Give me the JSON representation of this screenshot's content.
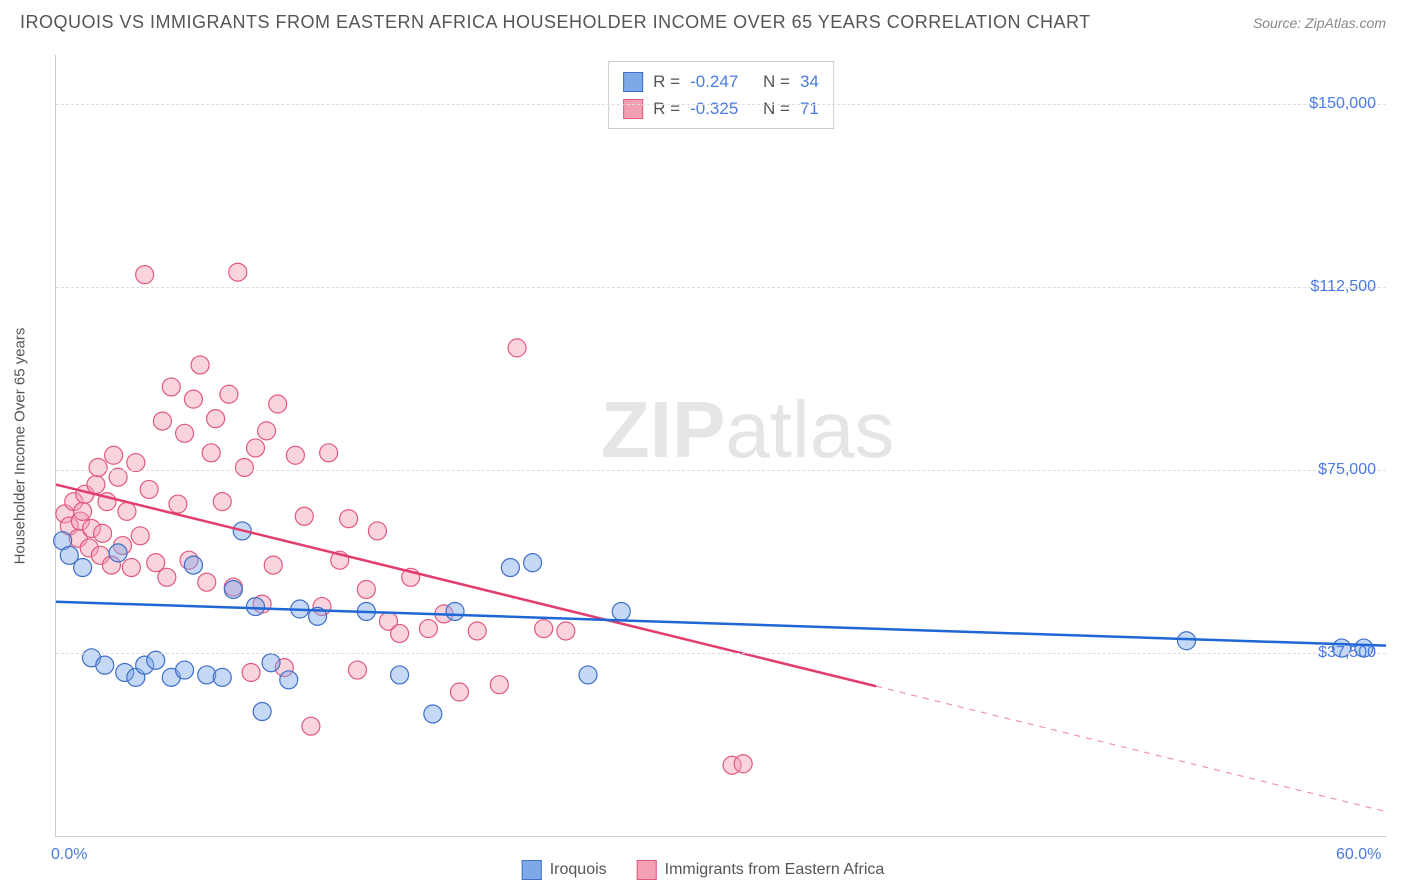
{
  "header": {
    "title": "IROQUOIS VS IMMIGRANTS FROM EASTERN AFRICA HOUSEHOLDER INCOME OVER 65 YEARS CORRELATION CHART",
    "source": "Source: ZipAtlas.com"
  },
  "chart": {
    "type": "scatter",
    "background_color": "#ffffff",
    "grid_color": "#dddddd",
    "axis_color": "#cccccc",
    "tick_label_color": "#4a7ae2",
    "title_color": "#555555",
    "y_axis_label": "Householder Income Over 65 years",
    "xlim": [
      0,
      60
    ],
    "ylim": [
      0,
      160000
    ],
    "x_ticks": [
      {
        "v": 0,
        "label": "0.0%"
      },
      {
        "v": 60,
        "label": "60.0%"
      }
    ],
    "y_ticks": [
      {
        "v": 37500,
        "label": "$37,500"
      },
      {
        "v": 75000,
        "label": "$75,000"
      },
      {
        "v": 112500,
        "label": "$112,500"
      },
      {
        "v": 150000,
        "label": "$150,000"
      }
    ],
    "marker_radius": 9,
    "marker_fill_opacity": 0.45,
    "marker_stroke_width": 1.2,
    "line_width": 2.5,
    "series": [
      {
        "name": "Iroquois",
        "fill": "#7fa8e8",
        "stroke": "#3f6fc9",
        "line_color": "#1f66d6",
        "R": "-0.247",
        "N": "34",
        "trend": {
          "x1": 0,
          "y1": 48000,
          "x2": 60,
          "y2": 39000,
          "dash_from_x": null
        },
        "points": [
          [
            0.3,
            60500
          ],
          [
            0.6,
            57500
          ],
          [
            1.2,
            55000
          ],
          [
            1.6,
            36500
          ],
          [
            2.2,
            35000
          ],
          [
            2.8,
            58000
          ],
          [
            3.1,
            33500
          ],
          [
            3.6,
            32500
          ],
          [
            4.0,
            35000
          ],
          [
            4.5,
            36000
          ],
          [
            5.2,
            32500
          ],
          [
            5.8,
            34000
          ],
          [
            6.2,
            55500
          ],
          [
            6.8,
            33000
          ],
          [
            7.5,
            32500
          ],
          [
            8.0,
            50500
          ],
          [
            8.4,
            62500
          ],
          [
            9.0,
            47000
          ],
          [
            9.3,
            25500
          ],
          [
            9.7,
            35500
          ],
          [
            10.5,
            32000
          ],
          [
            11.0,
            46500
          ],
          [
            11.8,
            45000
          ],
          [
            14.0,
            46000
          ],
          [
            15.5,
            33000
          ],
          [
            17.0,
            25000
          ],
          [
            18.0,
            46000
          ],
          [
            20.5,
            55000
          ],
          [
            21.5,
            56000
          ],
          [
            24.0,
            33000
          ],
          [
            25.5,
            46000
          ],
          [
            51.0,
            40000
          ],
          [
            58.0,
            38500
          ],
          [
            59.0,
            38500
          ]
        ]
      },
      {
        "name": "Immigrants from Eastern Africa",
        "fill": "#f4a0b4",
        "stroke": "#e05a7f",
        "line_color": "#e23d6d",
        "R": "-0.325",
        "N": "71",
        "trend": {
          "x1": 0,
          "y1": 72000,
          "x2": 60,
          "y2": 5000,
          "dash_from_x": 37
        },
        "points": [
          [
            0.4,
            66000
          ],
          [
            0.6,
            63500
          ],
          [
            0.8,
            68500
          ],
          [
            1.0,
            61000
          ],
          [
            1.1,
            64500
          ],
          [
            1.2,
            66500
          ],
          [
            1.3,
            70000
          ],
          [
            1.5,
            59000
          ],
          [
            1.6,
            63000
          ],
          [
            1.8,
            72000
          ],
          [
            1.9,
            75500
          ],
          [
            2.0,
            57500
          ],
          [
            2.1,
            62000
          ],
          [
            2.3,
            68500
          ],
          [
            2.5,
            55500
          ],
          [
            2.6,
            78000
          ],
          [
            2.8,
            73500
          ],
          [
            3.0,
            59500
          ],
          [
            3.2,
            66500
          ],
          [
            3.4,
            55000
          ],
          [
            3.6,
            76500
          ],
          [
            3.8,
            61500
          ],
          [
            4.0,
            115000
          ],
          [
            4.2,
            71000
          ],
          [
            4.5,
            56000
          ],
          [
            4.8,
            85000
          ],
          [
            5.0,
            53000
          ],
          [
            5.2,
            92000
          ],
          [
            5.5,
            68000
          ],
          [
            5.8,
            82500
          ],
          [
            6.0,
            56500
          ],
          [
            6.2,
            89500
          ],
          [
            6.5,
            96500
          ],
          [
            6.8,
            52000
          ],
          [
            7.0,
            78500
          ],
          [
            7.2,
            85500
          ],
          [
            7.5,
            68500
          ],
          [
            7.8,
            90500
          ],
          [
            8.0,
            51000
          ],
          [
            8.2,
            115500
          ],
          [
            8.5,
            75500
          ],
          [
            8.8,
            33500
          ],
          [
            9.0,
            79500
          ],
          [
            9.3,
            47500
          ],
          [
            9.5,
            83000
          ],
          [
            9.8,
            55500
          ],
          [
            10.0,
            88500
          ],
          [
            10.3,
            34500
          ],
          [
            10.8,
            78000
          ],
          [
            11.2,
            65500
          ],
          [
            11.5,
            22500
          ],
          [
            12.0,
            47000
          ],
          [
            12.3,
            78500
          ],
          [
            12.8,
            56500
          ],
          [
            13.2,
            65000
          ],
          [
            13.6,
            34000
          ],
          [
            14.0,
            50500
          ],
          [
            14.5,
            62500
          ],
          [
            15.0,
            44000
          ],
          [
            15.5,
            41500
          ],
          [
            16.0,
            53000
          ],
          [
            16.8,
            42500
          ],
          [
            17.5,
            45500
          ],
          [
            18.2,
            29500
          ],
          [
            19.0,
            42000
          ],
          [
            20.0,
            31000
          ],
          [
            20.8,
            100000
          ],
          [
            22.0,
            42500
          ],
          [
            23.0,
            42000
          ],
          [
            30.5,
            14500
          ],
          [
            31.0,
            14800
          ]
        ]
      }
    ],
    "stats_box": {
      "R_label": "R =",
      "N_label": "N ="
    },
    "legend": [
      {
        "label": "Iroquois",
        "fill": "#7fa8e8",
        "stroke": "#3f6fc9"
      },
      {
        "label": "Immigrants from Eastern Africa",
        "fill": "#f4a0b4",
        "stroke": "#e05a7f"
      }
    ],
    "watermark": {
      "bold": "ZIP",
      "rest": "atlas"
    }
  }
}
